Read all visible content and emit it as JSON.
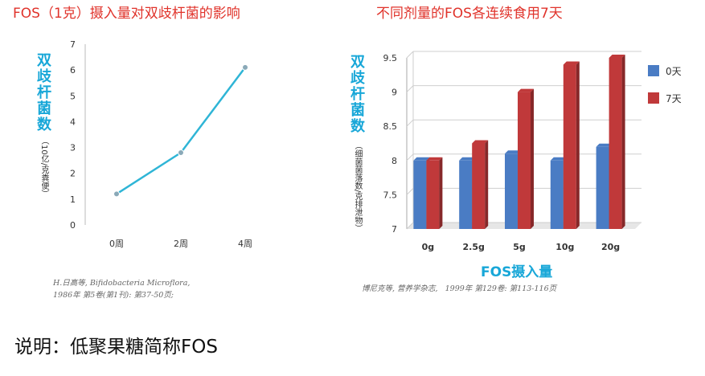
{
  "left_chart": {
    "title": "FOS（1克）摄入量对双歧杆菌的影响",
    "ylabel": "双歧杆菌数",
    "ylabel_unit": "（10亿/克粪便）",
    "citation": "H.日高等, Bifidobacteria Microflora,\n1986年 第5卷(第1刊): 第37-50页;",
    "line_color": "#2fb5d6"
  },
  "right_chart": {
    "title": "不同剂量的FOS各连续食用7天",
    "ylabel": "双歧杆菌数",
    "ylabel_unit": "（细菌菌落数/克排泄物）",
    "xlabel": "FOS摄入量",
    "citation": "博尼克等, 营养学杂志,   1999年 第129卷: 第113-116页",
    "colors": [
      "#4a7cc4",
      "#c0393a"
    ]
  },
  "note": "说明：低聚果糖简称FOS",
  "chart_data": [
    {
      "type": "line",
      "title": "FOS（1克）摄入量对双歧杆菌的影响",
      "xlabel": "",
      "ylabel": "双歧杆菌数（10亿/克粪便）",
      "categories": [
        "0周",
        "2周",
        "4周"
      ],
      "series": [
        {
          "values": [
            1.2,
            2.8,
            6.1
          ]
        }
      ],
      "ylim": [
        0,
        7
      ],
      "yticks": [
        "0",
        "1",
        "2",
        "3",
        "4",
        "5",
        "6",
        "7"
      ],
      "grid": false
    },
    {
      "type": "bar",
      "title": "不同剂量的FOS各连续食用7天",
      "xlabel": "FOS摄入量",
      "ylabel": "双歧杆菌数（细菌菌落数/克排泄物）",
      "categories": [
        "0g",
        "2.5g",
        "5g",
        "10g",
        "20g"
      ],
      "series": [
        {
          "name": "0天",
          "values": [
            8.0,
            8.0,
            8.1,
            8.0,
            8.2
          ]
        },
        {
          "name": "7天",
          "values": [
            8.0,
            8.25,
            9.0,
            9.4,
            9.5
          ]
        }
      ],
      "ylim": [
        7,
        9.5
      ],
      "yticks": [
        "7",
        "7.5",
        "8",
        "8.5",
        "9",
        "9.5"
      ],
      "grid": true,
      "legend": "right"
    }
  ]
}
